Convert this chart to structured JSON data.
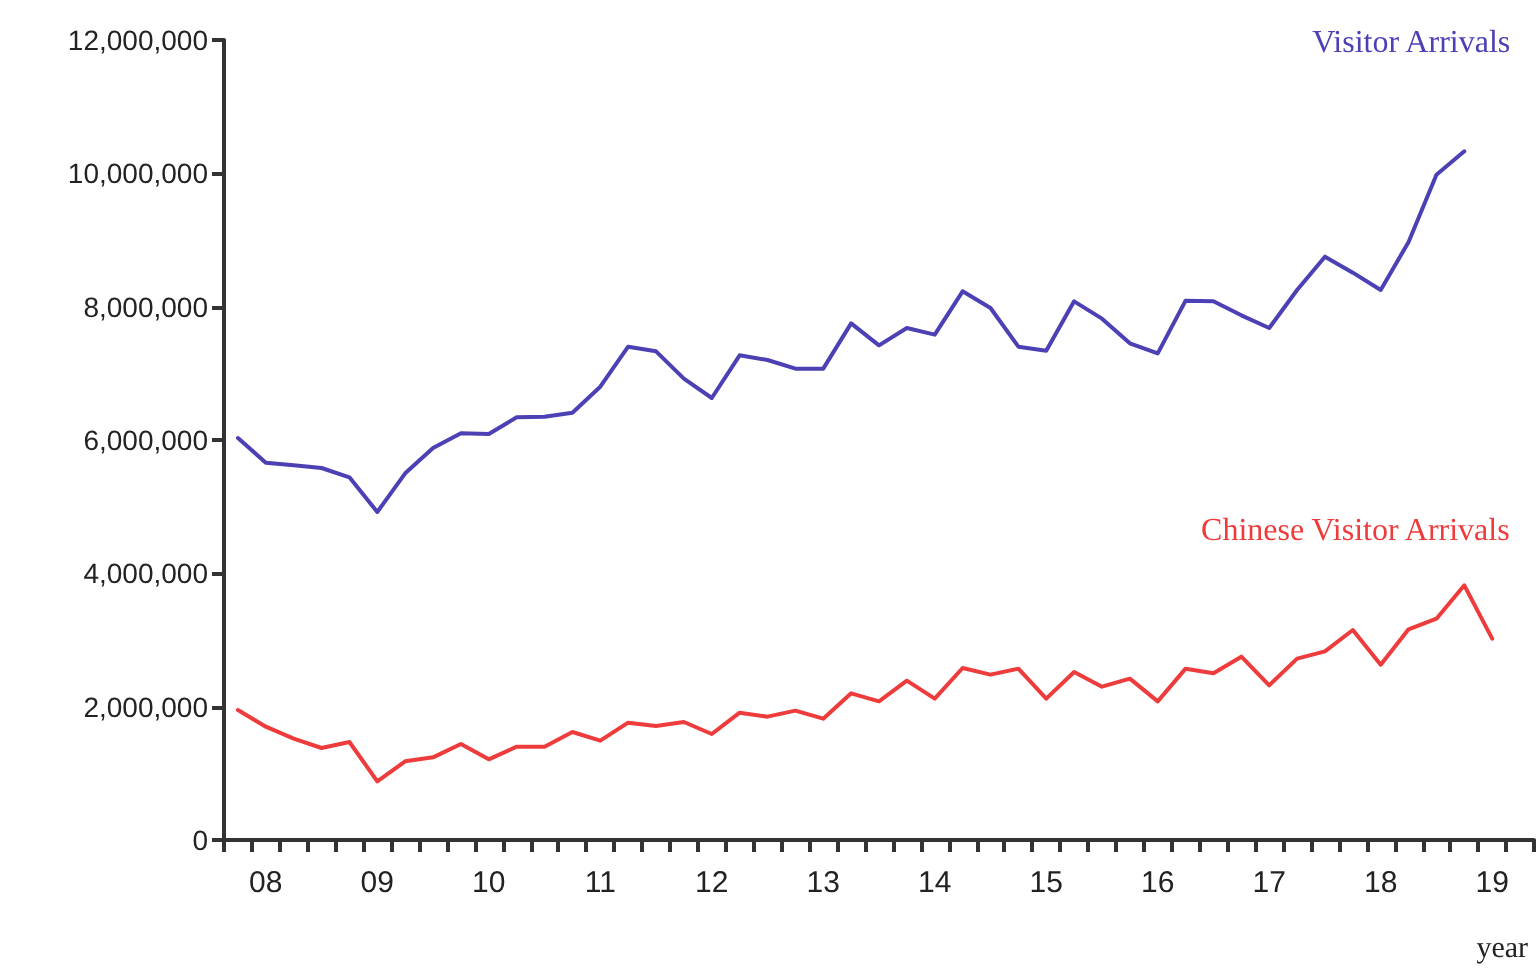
{
  "chart_data": {
    "type": "line",
    "xlabel": "year",
    "categories": [
      null,
      "08",
      null,
      null,
      null,
      "09",
      null,
      null,
      null,
      "10",
      null,
      null,
      null,
      "11",
      null,
      null,
      null,
      "12",
      null,
      null,
      null,
      "13",
      null,
      null,
      null,
      "14",
      null,
      null,
      null,
      "15",
      null,
      null,
      null,
      "16",
      null,
      null,
      null,
      "17",
      null,
      null,
      null,
      "18",
      null,
      null,
      null,
      "19",
      null
    ],
    "series": [
      {
        "name": "Visitor Arrivals",
        "color": "#4b40b4",
        "values": [
          6030000,
          5660000,
          5620000,
          5580000,
          5440000,
          4920000,
          5500000,
          5880000,
          6100000,
          6090000,
          6340000,
          6350000,
          6410000,
          6800000,
          7400000,
          7330000,
          6920000,
          6630000,
          7270000,
          7200000,
          7070000,
          7070000,
          7750000,
          7420000,
          7680000,
          7580000,
          8230000,
          7980000,
          7400000,
          7340000,
          8080000,
          7820000,
          7450000,
          7300000,
          8090000,
          8080000,
          7870000,
          7680000,
          8250000,
          8750000,
          8510000,
          8250000,
          8970000,
          9980000,
          10330000,
          null,
          null
        ]
      },
      {
        "name": "Chinese Visitor Arrivals",
        "color": "#ee3b3b",
        "values": [
          1950000,
          1700000,
          1520000,
          1380000,
          1470000,
          880000,
          1180000,
          1240000,
          1440000,
          1210000,
          1400000,
          1400000,
          1620000,
          1490000,
          1760000,
          1710000,
          1770000,
          1590000,
          1910000,
          1850000,
          1940000,
          1820000,
          2200000,
          2080000,
          2390000,
          2120000,
          2580000,
          2480000,
          2570000,
          2120000,
          2520000,
          2300000,
          2420000,
          2080000,
          2570000,
          2500000,
          2750000,
          2320000,
          2720000,
          2830000,
          3150000,
          2630000,
          3160000,
          3320000,
          3820000,
          3020000,
          null
        ]
      }
    ],
    "ylim": [
      0,
      12000000
    ],
    "yticks": [
      {
        "value": 0,
        "label": "0"
      },
      {
        "value": 2000000,
        "label": "2,000,000"
      },
      {
        "value": 4000000,
        "label": "4,000,000"
      },
      {
        "value": 6000000,
        "label": "6,000,000"
      },
      {
        "value": 8000000,
        "label": "8,000,000"
      },
      {
        "value": 10000000,
        "label": "10,000,000"
      },
      {
        "value": 12000000,
        "label": "12,000,000"
      }
    ],
    "grid": false,
    "legend": false,
    "marker": "none",
    "line_style": "solid"
  }
}
